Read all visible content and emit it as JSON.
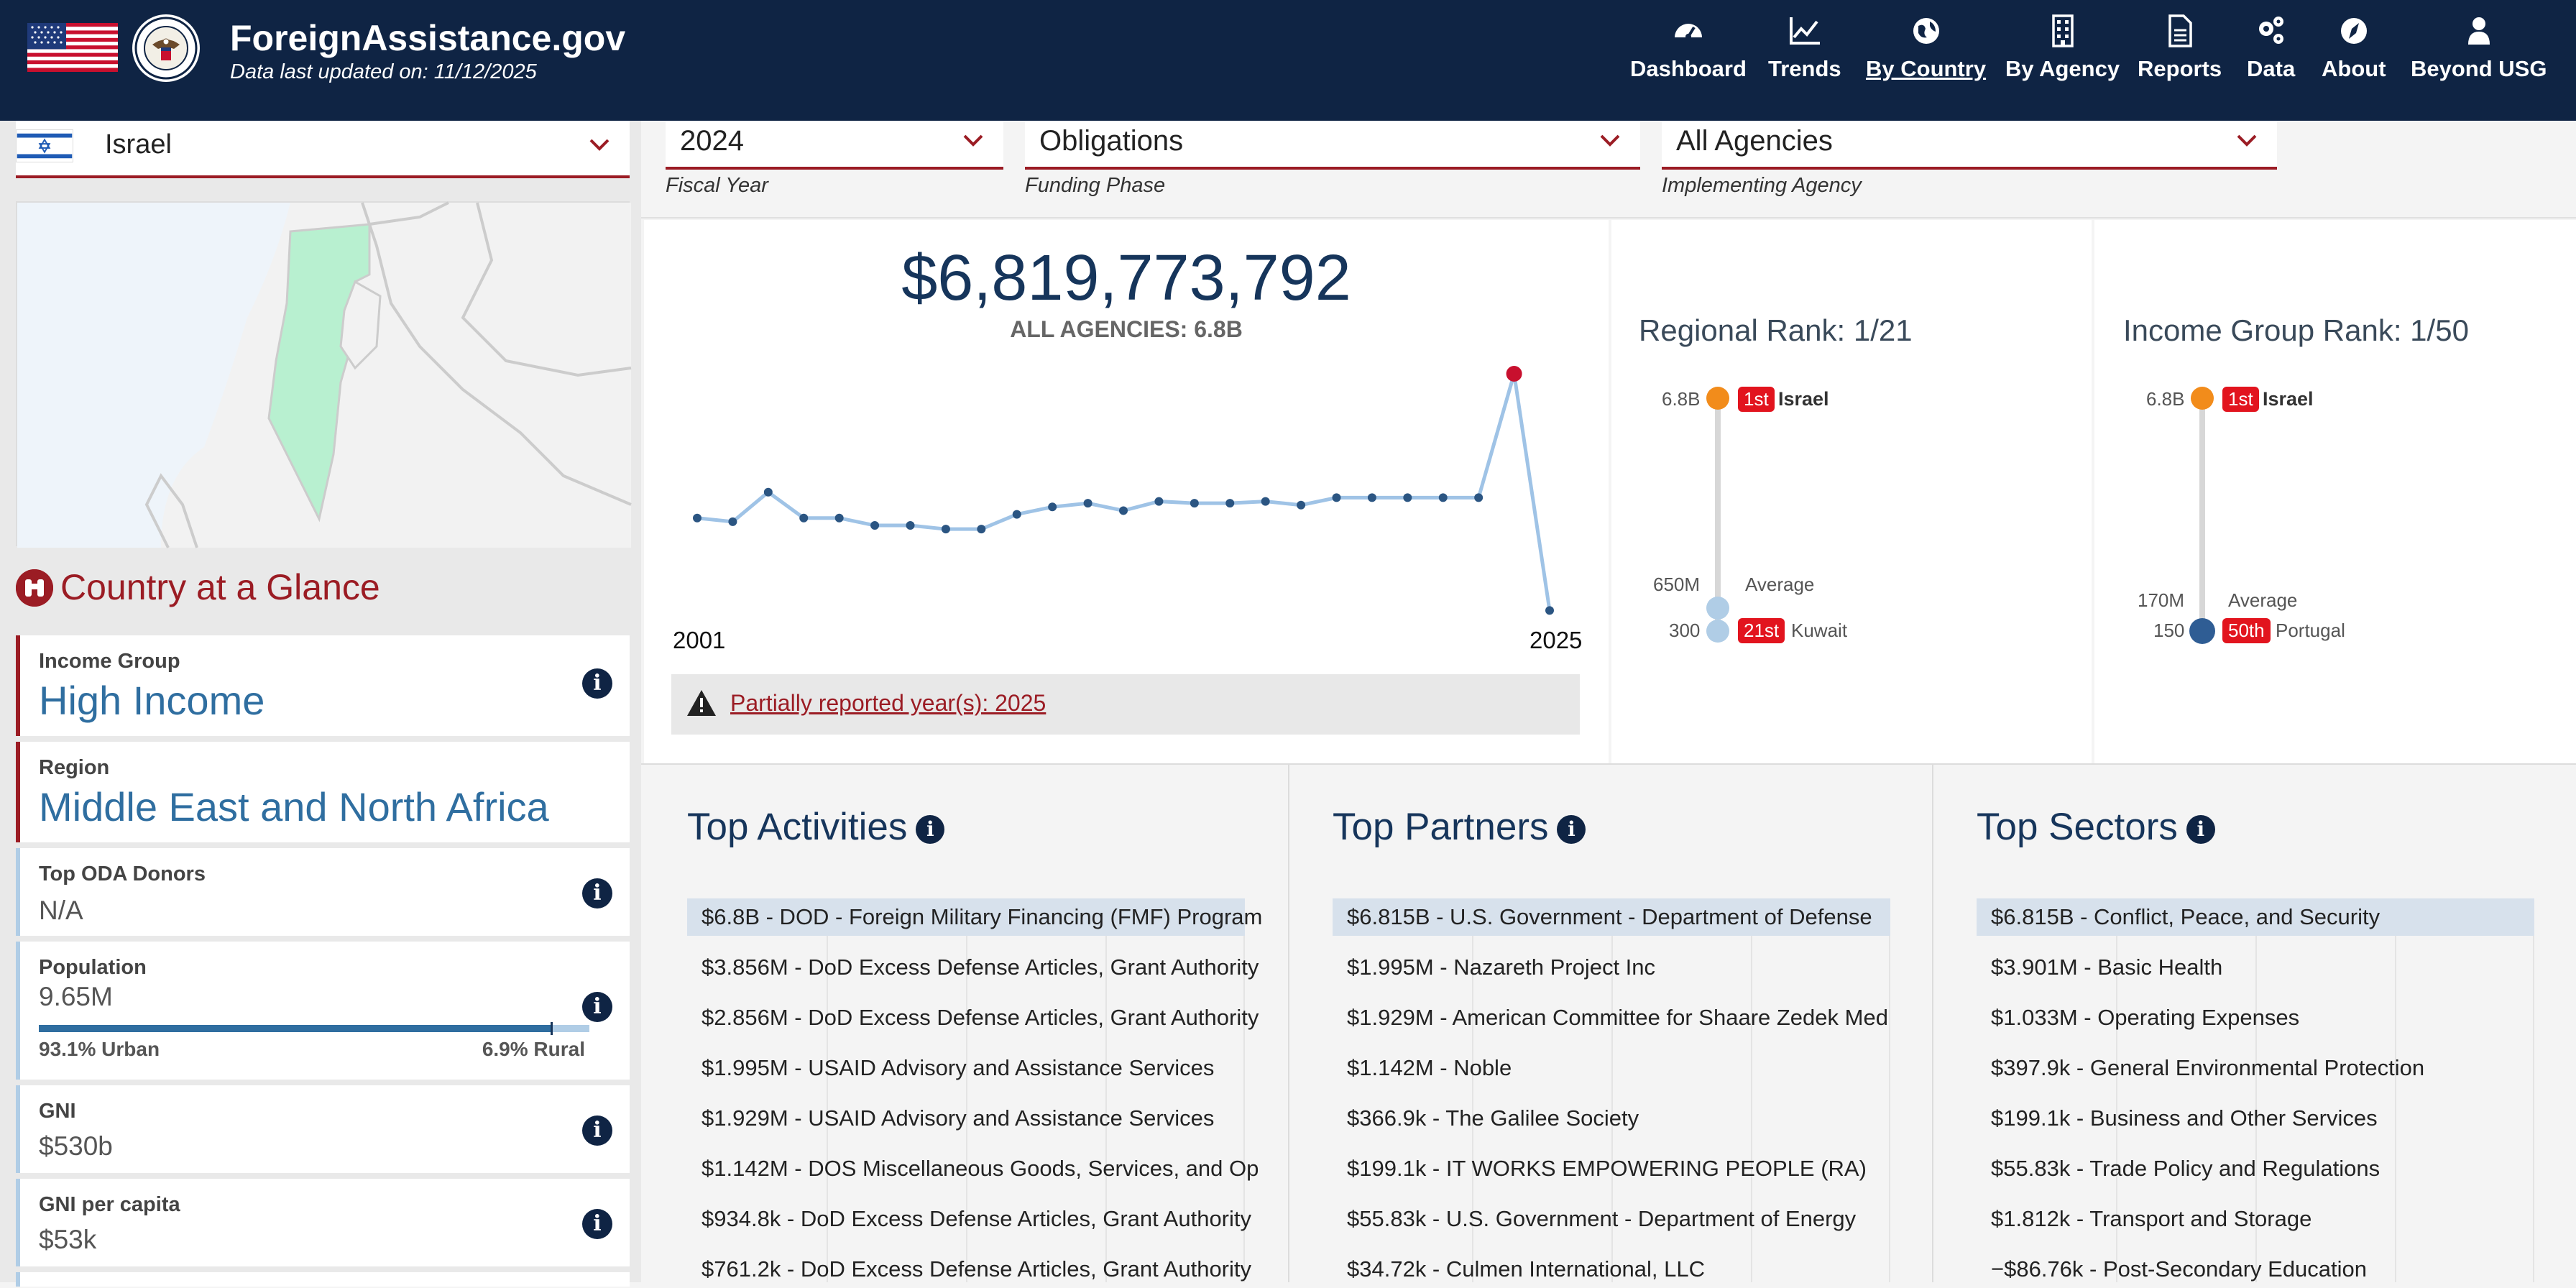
{
  "header": {
    "site_title": "ForeignAssistance.gov",
    "updated": "Data last updated on: 11/12/2025",
    "nav": [
      {
        "label": "Dashboard",
        "icon": "dashboard-icon"
      },
      {
        "label": "Trends",
        "icon": "trends-icon"
      },
      {
        "label": "By Country",
        "icon": "globe-icon",
        "active": true
      },
      {
        "label": "By Agency",
        "icon": "building-icon"
      },
      {
        "label": "Reports",
        "icon": "report-icon"
      },
      {
        "label": "Data",
        "icon": "gears-icon"
      },
      {
        "label": "About",
        "icon": "compass-icon"
      },
      {
        "label": "Beyond USG",
        "icon": "user-icon"
      }
    ]
  },
  "sidebar": {
    "country": "Israel",
    "glance_title": "Country at a Glance",
    "income_group": {
      "label": "Income Group",
      "value": "High Income"
    },
    "region": {
      "label": "Region",
      "value": "Middle East and North Africa"
    },
    "oda": {
      "label": "Top ODA Donors",
      "value": "N/A"
    },
    "population": {
      "label": "Population",
      "value": "9.65M",
      "urban": "93.1% Urban",
      "rural": "6.9% Rural",
      "urban_fraction": 0.931
    },
    "gni": {
      "label": "GNI",
      "value": "$530b"
    },
    "gni_per_capita": {
      "label": "GNI per capita",
      "value": "$53k"
    }
  },
  "filters": {
    "fiscal_year": {
      "value": "2024",
      "caption": "Fiscal Year"
    },
    "funding_phase": {
      "value": "Obligations",
      "caption": "Funding Phase"
    },
    "agency": {
      "value": "All Agencies",
      "caption": "Implementing Agency"
    }
  },
  "summary": {
    "total": "$6,819,773,792",
    "subtitle": "ALL AGENCIES: 6.8B",
    "year_start": "2001",
    "year_end": "2025",
    "notice": "Partially reported year(s): 2025"
  },
  "chart_data": {
    "type": "line",
    "x": [
      2001,
      2002,
      2003,
      2004,
      2005,
      2006,
      2007,
      2008,
      2009,
      2010,
      2011,
      2012,
      2013,
      2014,
      2015,
      2016,
      2017,
      2018,
      2019,
      2020,
      2021,
      2022,
      2023,
      2024,
      2025
    ],
    "values": [
      2.9,
      2.8,
      3.6,
      2.9,
      2.9,
      2.7,
      2.7,
      2.6,
      2.6,
      3.0,
      3.2,
      3.3,
      3.1,
      3.35,
      3.3,
      3.3,
      3.35,
      3.25,
      3.45,
      3.45,
      3.45,
      3.45,
      3.45,
      6.8,
      0.4
    ],
    "unit": "B",
    "highlight_year": 2024
  },
  "regional_rank": {
    "title": "Regional Rank: 1/21",
    "top_value": "6.8B",
    "top_rank": "1st",
    "top_name": "Israel",
    "avg_value": "650M",
    "avg_label": "Average",
    "bottom_value": "300",
    "bottom_rank": "21st",
    "bottom_name": "Kuwait"
  },
  "income_rank": {
    "title": "Income Group Rank: 1/50",
    "top_value": "6.8B",
    "top_rank": "1st",
    "top_name": "Israel",
    "avg_value": "170M",
    "avg_label": "Average",
    "bottom_value": "150",
    "bottom_rank": "50th",
    "bottom_name": "Portugal"
  },
  "activities": {
    "title": "Top Activities",
    "items": [
      "$6.8B - DOD - Foreign Military Financing (FMF) Program",
      "$3.856M - DoD Excess Defense Articles, Grant Authority",
      "$2.856M - DoD Excess Defense Articles, Grant Authority",
      "$1.995M - USAID Advisory and Assistance Services",
      "$1.929M - USAID Advisory and Assistance Services",
      "$1.142M - DOS Miscellaneous Goods, Services, and Op",
      "$934.8k - DoD Excess Defense Articles, Grant Authority",
      "$761.2k - DoD Excess Defense Articles, Grant Authority"
    ]
  },
  "partners": {
    "title": "Top Partners",
    "items": [
      "$6.815B - U.S. Government - Department of Defense",
      "$1.995M - Nazareth Project Inc",
      "$1.929M - American Committee for Shaare Zedek Med",
      "$1.142M - Noble",
      "$366.9k - The Galilee Society",
      "$199.1k - IT WORKS EMPOWERING PEOPLE (RA)",
      "$55.83k - U.S. Government - Department of Energy",
      "$34.72k - Culmen International, LLC"
    ]
  },
  "sectors": {
    "title": "Top Sectors",
    "items": [
      "$6.815B - Conflict, Peace, and Security",
      "$3.901M - Basic Health",
      "$1.033M - Operating Expenses",
      "$397.9k - General Environmental Protection",
      "$199.1k - Business and Other Services",
      "$55.83k - Trade Policy and Regulations",
      "$1.812k - Transport and Storage",
      "−$86.76k - Post-Secondary Education"
    ]
  },
  "colors": {
    "navy": "#0f2444",
    "accent_red": "#9b1c24",
    "line": "#9fc3e6",
    "point": "#2b5582",
    "highlight": "#c8102e",
    "orange": "#f28c1b"
  }
}
